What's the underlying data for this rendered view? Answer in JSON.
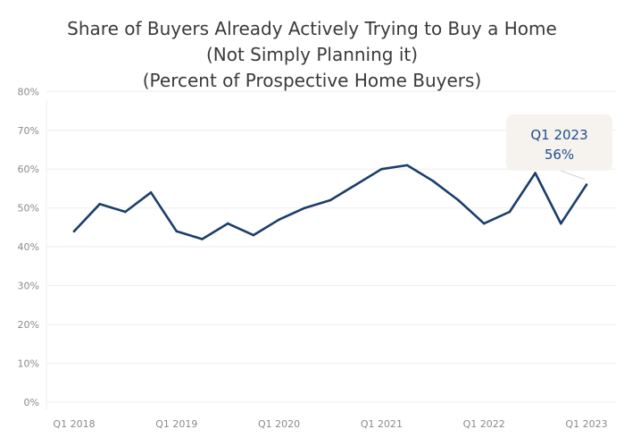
{
  "title_lines": [
    "Share of Buyers Already Actively Trying to Buy a Home",
    "(Not Simply Planning it)",
    "(Percent of Prospective Home Buyers)"
  ],
  "callout": {
    "period": "Q1 2023",
    "value": "56%"
  },
  "colors": {
    "line": "#1b3e6b",
    "callout_text": "#1f4e8c",
    "callout_bg": "#f6f3ee",
    "grid": "#eeeeee"
  },
  "chart_data": {
    "type": "line",
    "title": "Share of Buyers Already Actively Trying to Buy a Home (Not Simply Planning it) (Percent of Prospective Home Buyers)",
    "xlabel": "",
    "ylabel": "",
    "x": [
      "Q1 2018",
      "Q2 2018",
      "Q3 2018",
      "Q4 2018",
      "Q1 2019",
      "Q2 2019",
      "Q3 2019",
      "Q4 2019",
      "Q1 2020",
      "Q2 2020",
      "Q3 2020",
      "Q4 2020",
      "Q1 2021",
      "Q2 2021",
      "Q3 2021",
      "Q4 2021",
      "Q1 2022",
      "Q2 2022",
      "Q3 2022",
      "Q4 2022",
      "Q1 2023"
    ],
    "x_tick_labels": [
      "Q1 2018",
      "Q1 2019",
      "Q1 2020",
      "Q1 2021",
      "Q1 2022",
      "Q1 2023"
    ],
    "values": [
      44,
      51,
      49,
      54,
      44,
      42,
      46,
      43,
      47,
      50,
      52,
      56,
      60,
      61,
      57,
      52,
      46,
      49,
      59,
      46,
      56
    ],
    "ylim": [
      0,
      80
    ],
    "y_ticks": [
      0,
      10,
      20,
      30,
      40,
      50,
      60,
      70,
      80
    ],
    "y_tick_labels": [
      "0%",
      "10%",
      "20%",
      "30%",
      "40%",
      "50%",
      "60%",
      "70%",
      "80%"
    ],
    "grid": true,
    "annotation": {
      "x": "Q1 2023",
      "value": 56,
      "text": "Q1 2023 56%"
    }
  }
}
